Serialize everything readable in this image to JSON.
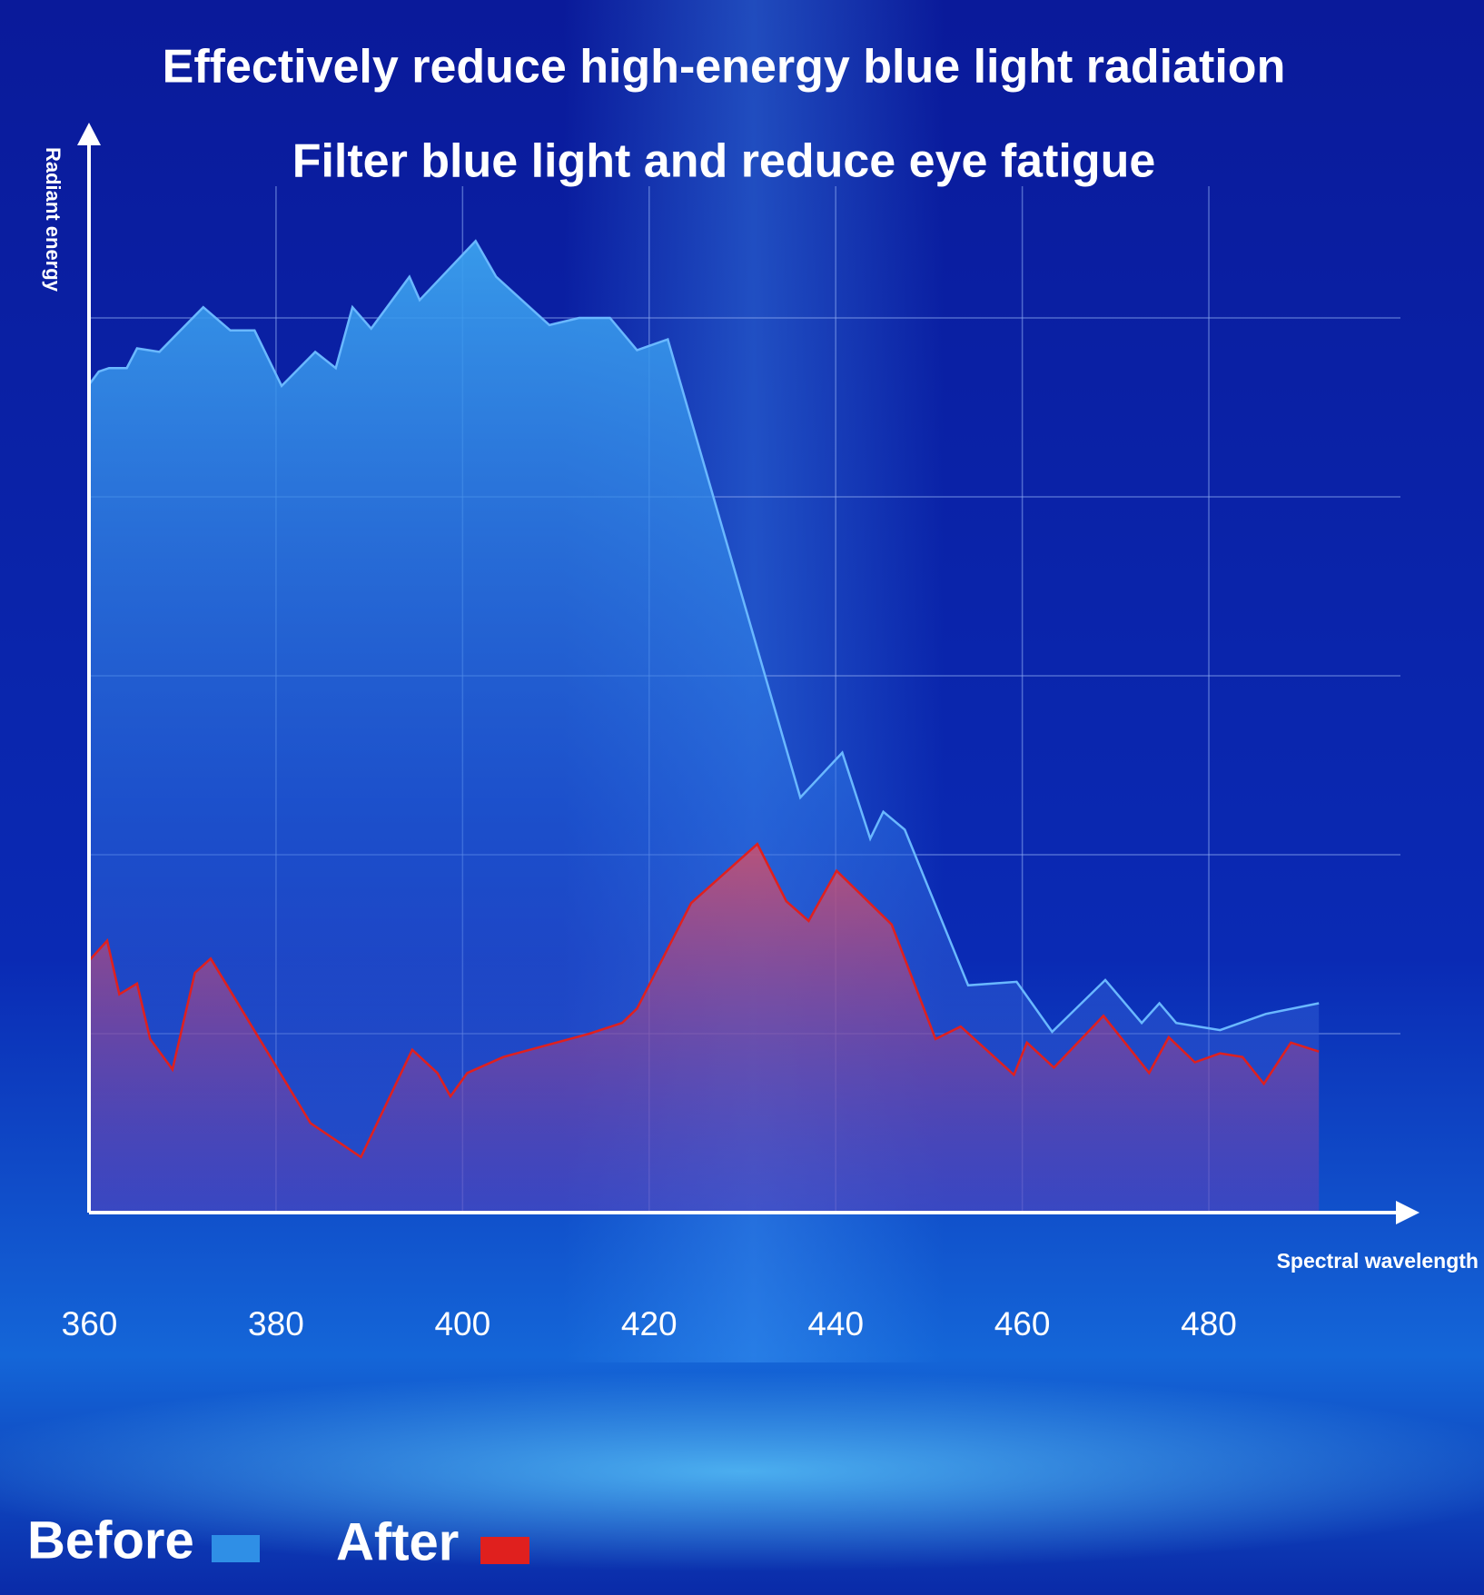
{
  "chart_data": {
    "type": "area",
    "title": "Effectively reduce high-energy blue light radiation",
    "subtitle": "Filter blue light and reduce eye fatigue",
    "y_label": "Radiant energy",
    "x_label": "Spectral wavelength",
    "xlim": [
      360,
      502
    ],
    "xticks": [
      360,
      380,
      400,
      420,
      440,
      460,
      480
    ],
    "ylim": [
      0,
      6
    ],
    "yticks": [
      1,
      2,
      3,
      4,
      5
    ],
    "grid": true,
    "series": [
      {
        "name": "Before",
        "color": "#2f8fe6",
        "x": [
          360,
          361.0,
          362.1,
          364.0,
          365.1,
          367.5,
          372.2,
          375.1,
          377.7,
          380.6,
          384.2,
          386.4,
          388.2,
          390.2,
          394.3,
          395.4,
          401.4,
          403.6,
          409.3,
          412.5,
          415.8,
          418.7,
          422.0,
          436.2,
          440.7,
          443.7,
          445.1,
          447.4,
          454.2,
          459.4,
          463.2,
          468.9,
          472.8,
          474.7,
          476.5,
          481.2,
          486.1,
          491.8
        ],
        "values": [
          4.63,
          4.7,
          4.72,
          4.72,
          4.83,
          4.81,
          5.06,
          4.93,
          4.93,
          4.62,
          4.81,
          4.72,
          5.06,
          4.94,
          5.23,
          5.1,
          5.43,
          5.23,
          4.96,
          5.0,
          5.0,
          4.82,
          4.88,
          2.32,
          2.57,
          2.09,
          2.24,
          2.14,
          1.27,
          1.29,
          1.01,
          1.3,
          1.06,
          1.17,
          1.06,
          1.02,
          1.11,
          1.17
        ]
      },
      {
        "name": "After",
        "color": "#e0201e",
        "x": [
          360,
          361.9,
          363.2,
          365.1,
          366.5,
          368.9,
          371.3,
          373.0,
          383.7,
          389.1,
          394.6,
          397.3,
          398.7,
          400.5,
          404.4,
          413.6,
          417.1,
          418.7,
          424.5,
          431.6,
          434.7,
          437.1,
          440.1,
          446.0,
          450.7,
          453.4,
          459.1,
          460.5,
          463.4,
          468.7,
          473.6,
          475.7,
          478.5,
          481.2,
          483.6,
          485.9,
          488.8,
          491.8
        ],
        "values": [
          1.41,
          1.52,
          1.22,
          1.28,
          0.97,
          0.8,
          1.34,
          1.42,
          0.5,
          0.31,
          0.91,
          0.78,
          0.65,
          0.78,
          0.87,
          1.0,
          1.06,
          1.14,
          1.73,
          2.06,
          1.74,
          1.63,
          1.91,
          1.61,
          0.97,
          1.04,
          0.77,
          0.95,
          0.81,
          1.1,
          0.78,
          0.98,
          0.84,
          0.89,
          0.87,
          0.72,
          0.95,
          0.9
        ]
      }
    ]
  }
}
